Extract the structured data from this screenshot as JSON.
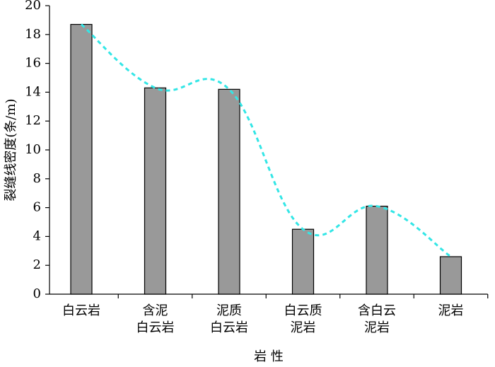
{
  "chart_data": {
    "type": "bar",
    "x_label": "岩 性",
    "y_label": "裂缝线密度(条/m)",
    "categories": [
      [
        "白云岩"
      ],
      [
        "含泥",
        "白云岩"
      ],
      [
        "泥质",
        "白云岩"
      ],
      [
        "白云质",
        "泥岩"
      ],
      [
        "含白云",
        "泥岩"
      ],
      [
        "泥岩"
      ]
    ],
    "values": [
      18.7,
      14.3,
      14.2,
      4.5,
      6.1,
      2.6
    ],
    "color": "#999999",
    "trend_line": true,
    "trend_color": "#33e6e6",
    "ylim": [
      0,
      20
    ],
    "yticks": [
      0,
      2,
      4,
      6,
      8,
      10,
      12,
      14,
      16,
      18,
      20
    ]
  }
}
